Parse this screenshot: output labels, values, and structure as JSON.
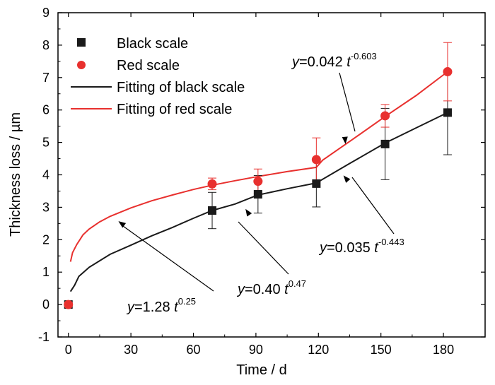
{
  "chart_data": {
    "type": "scatter",
    "xlabel": "Time / d",
    "ylabel": "Thickness loss / µm",
    "xlim": [
      -5,
      200
    ],
    "ylim": [
      -1,
      9
    ],
    "xticks": [
      0,
      30,
      60,
      90,
      120,
      150,
      180
    ],
    "yticks": [
      -1,
      0,
      1,
      2,
      3,
      4,
      5,
      6,
      7,
      8,
      9
    ],
    "grid": false,
    "legend_position": "top-left",
    "colors": {
      "black": "#1a1a1a",
      "red": "#e8302e"
    },
    "series": [
      {
        "name": "Black scale",
        "marker": "square",
        "color": "#1a1a1a",
        "x": [
          0,
          69,
          91,
          119,
          152,
          182
        ],
        "y": [
          0,
          2.9,
          3.4,
          3.73,
          4.95,
          5.92
        ],
        "err": [
          0,
          0.56,
          0.58,
          0.72,
          1.1,
          1.3
        ]
      },
      {
        "name": "Red scale",
        "marker": "circle",
        "color": "#e8302e",
        "x": [
          0,
          69,
          91,
          119,
          152,
          182
        ],
        "y": [
          0,
          3.72,
          3.8,
          4.47,
          5.82,
          7.18
        ],
        "err": [
          0,
          0.18,
          0.38,
          0.67,
          0.35,
          0.9
        ]
      }
    ],
    "fits": [
      {
        "name": "Fitting of black scale",
        "color": "#1a1a1a",
        "points": [
          [
            1,
            0.4
          ],
          [
            3,
            0.6
          ],
          [
            5,
            0.87
          ],
          [
            10,
            1.15
          ],
          [
            20,
            1.55
          ],
          [
            30,
            1.83
          ],
          [
            40,
            2.12
          ],
          [
            50,
            2.38
          ],
          [
            60,
            2.66
          ],
          [
            69,
            2.9
          ],
          [
            80,
            3.1
          ],
          [
            91,
            3.38
          ],
          [
            105,
            3.57
          ],
          [
            119,
            3.75
          ],
          [
            135,
            4.35
          ],
          [
            152,
            4.98
          ],
          [
            167,
            5.45
          ],
          [
            182,
            5.92
          ]
        ]
      },
      {
        "name": "Fitting of red scale",
        "color": "#e8302e",
        "points": [
          [
            1,
            1.32
          ],
          [
            2,
            1.6
          ],
          [
            4,
            1.85
          ],
          [
            7,
            2.15
          ],
          [
            10,
            2.33
          ],
          [
            15,
            2.55
          ],
          [
            20,
            2.72
          ],
          [
            30,
            2.98
          ],
          [
            40,
            3.2
          ],
          [
            50,
            3.38
          ],
          [
            60,
            3.55
          ],
          [
            69,
            3.68
          ],
          [
            80,
            3.82
          ],
          [
            91,
            3.95
          ],
          [
            105,
            4.1
          ],
          [
            119,
            4.23
          ],
          [
            122,
            4.45
          ],
          [
            137,
            5.12
          ],
          [
            152,
            5.8
          ],
          [
            167,
            6.45
          ],
          [
            182,
            7.18
          ]
        ]
      }
    ],
    "annotations": [
      {
        "base": "y",
        "mid": "=0.042 ",
        "var": "t",
        "exp": "-0.603",
        "arrow_to": [
          133,
          4.95
        ]
      },
      {
        "base": "y",
        "mid": "=1.28 ",
        "var": "t",
        "exp": "0.25",
        "arrow_to": [
          24,
          2.57
        ]
      },
      {
        "base": "y",
        "mid": "=0.40 ",
        "var": "t",
        "exp": "0.47",
        "arrow_to": [
          85,
          2.95
        ]
      },
      {
        "base": "y",
        "mid": "=0.035 ",
        "var": "t",
        "exp": "-0.443",
        "arrow_to": [
          132,
          3.98
        ]
      }
    ]
  }
}
